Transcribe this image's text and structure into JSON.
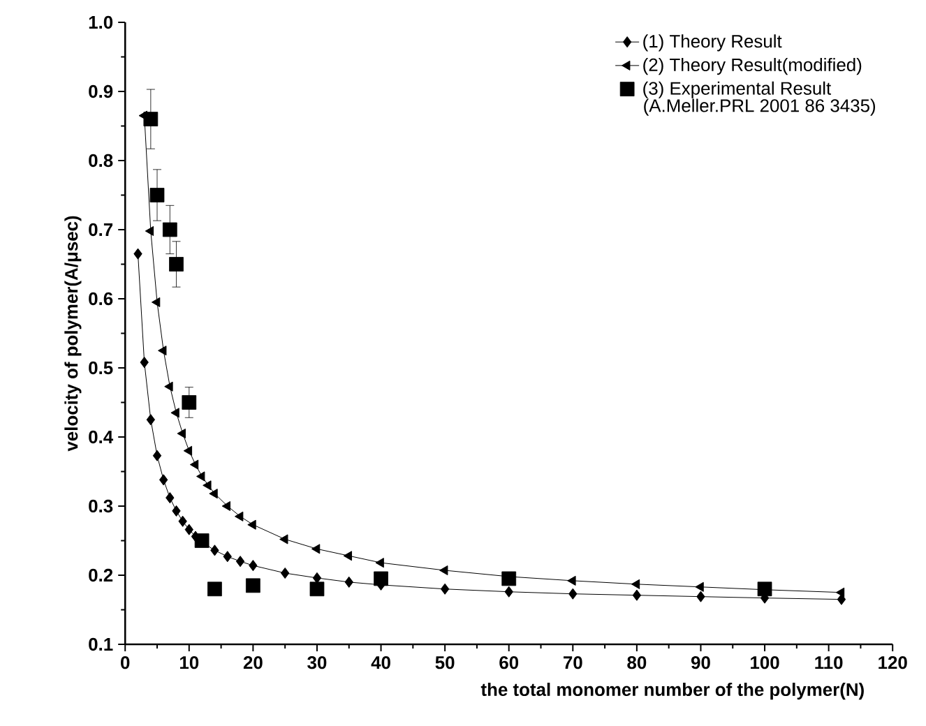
{
  "chart_data": {
    "type": "line",
    "xlabel": "the total monomer number of the polymer(N)",
    "ylabel": "velocity of polymer(A/μsec)",
    "xlim": [
      0,
      120
    ],
    "ylim": [
      0.1,
      1.0
    ],
    "xticks": [
      0,
      10,
      20,
      30,
      40,
      50,
      60,
      70,
      80,
      90,
      100,
      110,
      120
    ],
    "yticks": [
      0.1,
      0.2,
      0.3,
      0.4,
      0.5,
      0.6,
      0.7,
      0.8,
      0.9,
      {
        "value": 1.0,
        "label": "1.0"
      }
    ],
    "legend": "top right",
    "grid": false,
    "annotations": [
      "(A.Meller.PRL 2001 86 3435)"
    ],
    "series": [
      {
        "name": "(1) Theory Result",
        "marker": "diamond",
        "color": "#000000",
        "x": [
          2,
          3,
          4,
          5,
          6,
          7,
          8,
          9,
          10,
          11,
          12,
          14,
          16,
          18,
          20,
          25,
          30,
          35,
          40,
          50,
          60,
          70,
          80,
          90,
          100,
          112
        ],
        "values": [
          0.665,
          0.508,
          0.425,
          0.373,
          0.338,
          0.312,
          0.293,
          0.278,
          0.266,
          0.256,
          0.248,
          0.236,
          0.227,
          0.22,
          0.214,
          0.203,
          0.196,
          0.19,
          0.186,
          0.18,
          0.176,
          0.173,
          0.171,
          0.169,
          0.167,
          0.165
        ]
      },
      {
        "name": "(2) Theory Result(modified)",
        "marker": "triangle",
        "color": "#000000",
        "x": [
          3,
          4,
          5,
          6,
          7,
          8,
          9,
          10,
          11,
          12,
          13,
          14,
          16,
          18,
          20,
          25,
          30,
          35,
          40,
          50,
          60,
          70,
          80,
          90,
          100,
          112
        ],
        "values": [
          0.865,
          0.698,
          0.595,
          0.525,
          0.473,
          0.435,
          0.405,
          0.38,
          0.36,
          0.343,
          0.33,
          0.318,
          0.3,
          0.285,
          0.273,
          0.252,
          0.238,
          0.228,
          0.218,
          0.207,
          0.198,
          0.192,
          0.187,
          0.183,
          0.179,
          0.175
        ]
      },
      {
        "name": "(3) Experimental Result",
        "type": "scatter",
        "marker": "square",
        "color": "#000000",
        "x": [
          4,
          5,
          7,
          8,
          10,
          12,
          14,
          20,
          30,
          40,
          60,
          100
        ],
        "values": [
          0.86,
          0.75,
          0.7,
          0.65,
          0.45,
          0.25,
          0.18,
          0.185,
          0.18,
          0.195,
          0.195,
          0.18
        ],
        "errors": [
          0.043,
          0.037,
          0.035,
          0.033,
          0.022,
          null,
          null,
          null,
          null,
          null,
          null,
          null
        ]
      }
    ]
  }
}
